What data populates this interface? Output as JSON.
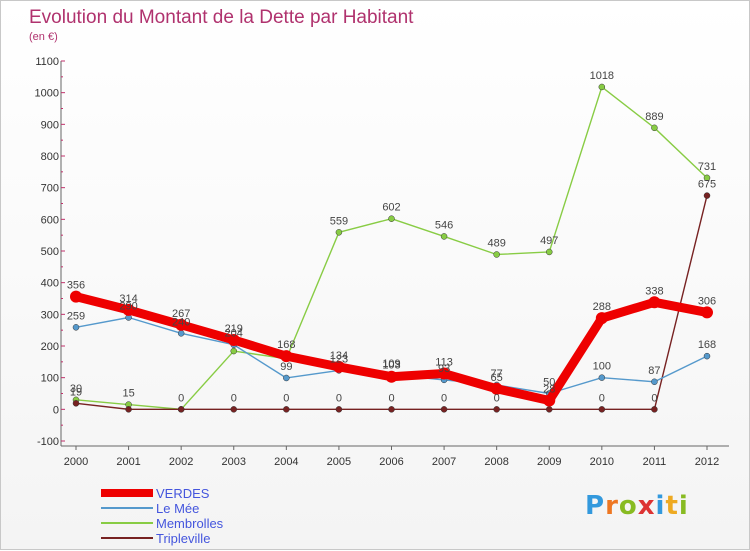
{
  "title": "Evolution du Montant de la Dette par Habitant",
  "unit": "(en €)",
  "logo": [
    "P",
    "r",
    "o",
    "x",
    "i",
    "t",
    "i"
  ],
  "chart_data": {
    "type": "line",
    "x": [
      "2000",
      "2001",
      "2002",
      "2003",
      "2004",
      "2005",
      "2006",
      "2007",
      "2008",
      "2009",
      "2010",
      "2011",
      "2012"
    ],
    "ylim": [
      -100,
      1100
    ],
    "yticks": [
      -100,
      0,
      100,
      200,
      300,
      400,
      500,
      600,
      700,
      800,
      900,
      1000,
      1100
    ],
    "grid": false,
    "legend": "bottom-left",
    "series": [
      {
        "name": "Membrolles",
        "color": "#88cc44",
        "values": [
          30,
          15,
          0,
          184,
          160,
          559,
          602,
          546,
          489,
          497,
          1018,
          889,
          731
        ]
      },
      {
        "name": "Tripleville",
        "color": "#772222",
        "values": [
          19,
          0,
          0,
          0,
          0,
          0,
          0,
          0,
          0,
          0,
          0,
          0,
          675
        ]
      },
      {
        "name": "Le Mée",
        "color": "#5599cc",
        "values": [
          259,
          290,
          240,
          204,
          99,
          123,
          109,
          93,
          77,
          50,
          100,
          87,
          168
        ]
      },
      {
        "name": "VERDES",
        "color": "#ee0000",
        "values": [
          356,
          314,
          267,
          219,
          168,
          134,
          103,
          113,
          65,
          28,
          288,
          338,
          306
        ]
      }
    ],
    "value_labels": {
      "Membrolles": [
        "30",
        "15",
        "0",
        "",
        "",
        "559",
        "602",
        "546",
        "489",
        "497",
        "1018",
        "889",
        "731"
      ],
      "Tripleville": [
        "19",
        "",
        "",
        "0",
        "0",
        "0",
        "0",
        "0",
        "0",
        "",
        "0",
        "0",
        "675"
      ],
      "Le Mée": [
        "259",
        "290",
        "240",
        "204",
        "99",
        "123",
        "109",
        "93",
        "77",
        "50",
        "100",
        "87",
        "168"
      ],
      "VERDES": [
        "356",
        "314",
        "267",
        "219",
        "168",
        "134",
        "103",
        "113",
        "65",
        "28",
        "288",
        "338",
        "306"
      ]
    }
  },
  "legend": [
    {
      "label": "VERDES",
      "color": "#ee0000"
    },
    {
      "label": "Le Mée",
      "color": "#5599cc"
    },
    {
      "label": "Membrolles",
      "color": "#88cc44"
    },
    {
      "label": "Tripleville",
      "color": "#772222"
    }
  ]
}
